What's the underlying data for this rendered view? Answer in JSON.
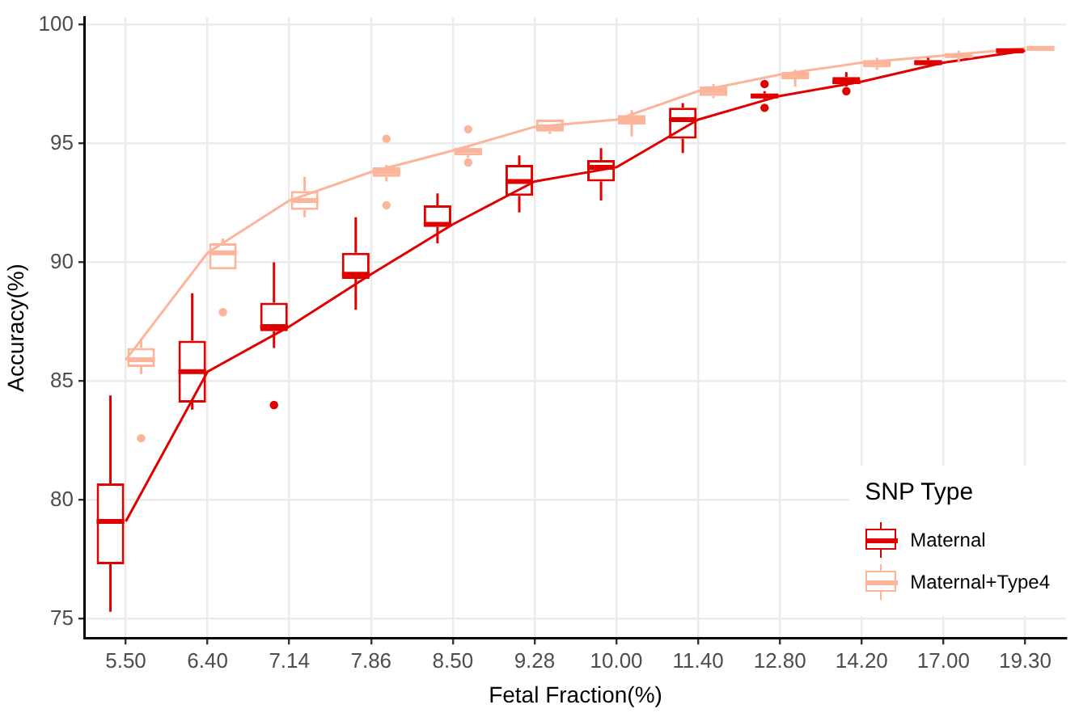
{
  "chart_data": {
    "type": "box",
    "xlabel": "Fetal Fraction(%)",
    "ylabel": "Accuracy(%)",
    "legend_title": "SNP Type",
    "legend": "bottom right",
    "grid": true,
    "categories": [
      "5.50",
      "6.40",
      "7.14",
      "7.86",
      "8.50",
      "9.28",
      "10.00",
      "11.40",
      "12.80",
      "14.20",
      "17.00",
      "19.30"
    ],
    "ylim": [
      74.2,
      100.3
    ],
    "yticks": [
      75,
      80,
      85,
      90,
      95,
      100
    ],
    "series": [
      {
        "name": "Maternal",
        "type": "box",
        "color": "#e00000",
        "boxes": [
          {
            "low": 75.3,
            "q1": 77.3,
            "median": 79.1,
            "q3": 80.7,
            "high": 84.4
          },
          {
            "low": 83.8,
            "q1": 84.1,
            "median": 85.4,
            "q3": 86.7,
            "high": 88.7
          },
          {
            "low": 86.4,
            "q1": 87.1,
            "median": 87.3,
            "q3": 88.3,
            "high": 90.0,
            "outliers": [
              84.0
            ]
          },
          {
            "low": 88.0,
            "q1": 89.3,
            "median": 89.5,
            "q3": 90.4,
            "high": 91.9
          },
          {
            "low": 90.8,
            "q1": 91.5,
            "median": 91.6,
            "q3": 92.4,
            "high": 92.9
          },
          {
            "low": 92.1,
            "q1": 92.8,
            "median": 93.4,
            "q3": 94.1,
            "high": 94.5
          },
          {
            "low": 92.6,
            "q1": 93.4,
            "median": 94.0,
            "q3": 94.3,
            "high": 94.8
          },
          {
            "low": 94.6,
            "q1": 95.2,
            "median": 96.0,
            "q3": 96.5,
            "high": 96.7
          },
          {
            "low": 96.8,
            "q1": 96.9,
            "median": 97.0,
            "q3": 97.1,
            "high": 97.2,
            "outliers": [
              97.5,
              96.5
            ]
          },
          {
            "low": 97.4,
            "q1": 97.5,
            "median": 97.6,
            "q3": 97.8,
            "high": 98.0,
            "outliers": [
              97.2
            ]
          },
          {
            "low": 98.2,
            "q1": 98.3,
            "median": 98.4,
            "q3": 98.5,
            "high": 98.6
          },
          {
            "low": 98.8,
            "q1": 98.8,
            "median": 98.9,
            "q3": 99.0,
            "high": 99.0
          }
        ]
      },
      {
        "name": "Maternal+Type4",
        "type": "box",
        "color": "#fcb59a",
        "boxes": [
          {
            "low": 85.3,
            "q1": 85.6,
            "median": 85.9,
            "q3": 86.4,
            "high": 86.8,
            "outliers": [
              82.6
            ]
          },
          {
            "low": 89.7,
            "q1": 89.7,
            "median": 90.4,
            "q3": 90.8,
            "high": 91.0,
            "outliers": [
              87.9
            ]
          },
          {
            "low": 91.9,
            "q1": 92.2,
            "median": 92.6,
            "q3": 93.0,
            "high": 93.6
          },
          {
            "low": 93.4,
            "q1": 93.6,
            "median": 93.8,
            "q3": 94.0,
            "high": 94.1,
            "outliers": [
              95.2,
              92.4
            ]
          },
          {
            "low": 94.4,
            "q1": 94.5,
            "median": 94.7,
            "q3": 94.8,
            "high": 94.9,
            "outliers": [
              95.6,
              94.2
            ]
          },
          {
            "low": 95.4,
            "q1": 95.5,
            "median": 95.7,
            "q3": 96.0,
            "high": 96.0
          },
          {
            "low": 95.3,
            "q1": 95.8,
            "median": 96.0,
            "q3": 96.2,
            "high": 96.4
          },
          {
            "low": 96.9,
            "q1": 97.0,
            "median": 97.2,
            "q3": 97.4,
            "high": 97.5
          },
          {
            "low": 97.4,
            "q1": 97.7,
            "median": 97.9,
            "q3": 98.0,
            "high": 98.1
          },
          {
            "low": 98.1,
            "q1": 98.2,
            "median": 98.4,
            "q3": 98.5,
            "high": 98.6
          },
          {
            "low": 98.4,
            "q1": 98.6,
            "median": 98.7,
            "q3": 98.8,
            "high": 98.9
          },
          {
            "low": 98.9,
            "q1": 98.9,
            "median": 99.0,
            "q3": 99.1,
            "high": 99.1
          }
        ]
      },
      {
        "type": "line",
        "color": "#e00000",
        "values": [
          79.1,
          85.4,
          87.3,
          89.5,
          91.6,
          93.4,
          94.0,
          96.0,
          97.0,
          97.6,
          98.4,
          98.9
        ]
      },
      {
        "type": "line",
        "color": "#fcb59a",
        "values": [
          85.9,
          90.4,
          92.6,
          93.8,
          94.7,
          95.7,
          96.0,
          97.2,
          97.9,
          98.4,
          98.7,
          99.0
        ]
      }
    ]
  }
}
